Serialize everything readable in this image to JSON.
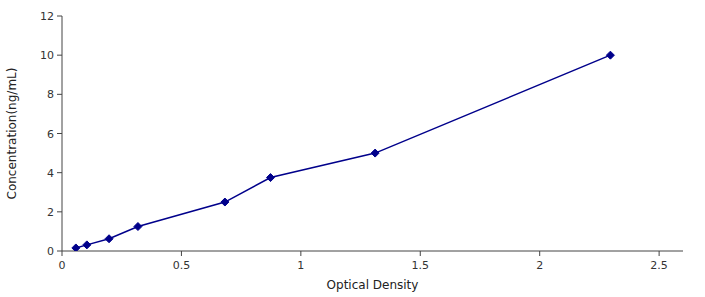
{
  "chart_data": {
    "type": "line",
    "x": [
      0.058,
      0.104,
      0.197,
      0.318,
      0.682,
      0.873,
      1.311,
      2.296
    ],
    "values": [
      0.156,
      0.312,
      0.625,
      1.25,
      2.5,
      3.75,
      5.0,
      10.0
    ],
    "color": "#00008B",
    "marker": "diamond",
    "xlabel": "Optical Density",
    "ylabel": "Concentration(ng/mL)",
    "xlim": [
      0,
      2.6
    ],
    "ylim": [
      0,
      12
    ],
    "xticks": [
      0,
      0.5,
      1,
      1.5,
      2,
      2.5
    ],
    "yticks": [
      0,
      2,
      4,
      6,
      8,
      10,
      12
    ],
    "grid": false
  }
}
